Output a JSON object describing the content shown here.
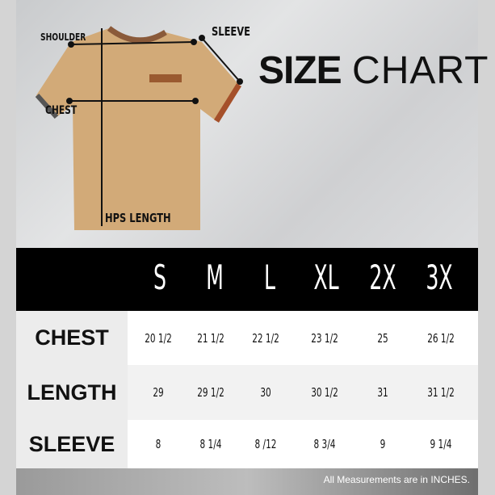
{
  "title": {
    "bold": "SIZE",
    "light": "CHART"
  },
  "labels": {
    "shoulder": "SHOULDER",
    "sleeve": "SLEEVE",
    "chest": "CHEST",
    "hps_length": "HPS LENGTH"
  },
  "sizes": [
    "S",
    "M",
    "L",
    "XL",
    "2X",
    "3X"
  ],
  "rows": [
    {
      "label": "CHEST",
      "values": [
        "20 1/2",
        "21 1/2",
        "22 1/2",
        "23 1/2",
        "25",
        "26 1/2"
      ]
    },
    {
      "label": "LENGTH",
      "values": [
        "29",
        "29 1/2",
        "30",
        "30 1/2",
        "31",
        "31 1/2"
      ]
    },
    {
      "label": "SLEEVE",
      "values": [
        "8",
        "8 1/4",
        "8 /12",
        "8 3/4",
        "9",
        "9 1/4"
      ]
    }
  ],
  "footer": "All Measurements are in INCHES.",
  "colors": {
    "shirt": "#d2aa78",
    "header": "#000000"
  }
}
